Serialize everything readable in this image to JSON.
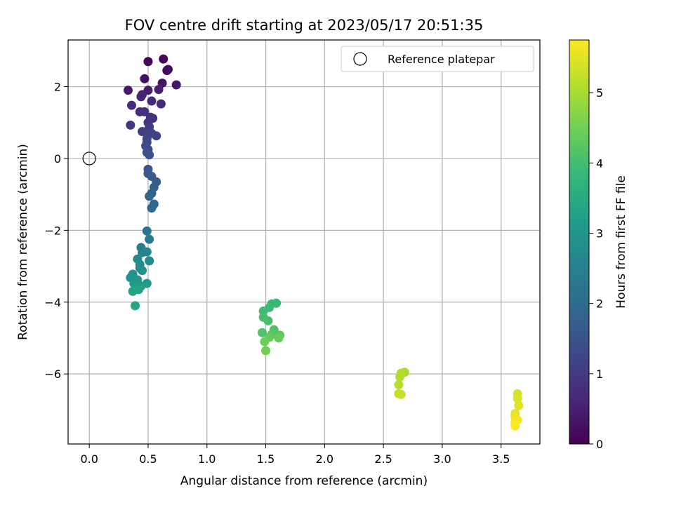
{
  "chart_data": {
    "type": "scatter",
    "title": "FOV centre drift starting at 2023/05/17 20:51:35",
    "xlabel": "Angular distance from reference (arcmin)",
    "ylabel": "Rotation from reference (arcmin)",
    "xlim": [
      -0.18,
      3.83
    ],
    "ylim": [
      -7.95,
      3.3
    ],
    "x_ticks": [
      0.0,
      0.5,
      1.0,
      1.5,
      2.0,
      2.5,
      3.0,
      3.5
    ],
    "x_tick_labels": [
      "0.0",
      "0.5",
      "1.0",
      "1.5",
      "2.0",
      "2.5",
      "3.0",
      "3.5"
    ],
    "y_ticks": [
      2,
      0,
      -2,
      -4,
      -6
    ],
    "y_tick_labels": [
      "2",
      "0",
      "−2",
      "−4",
      "−6"
    ],
    "grid": true,
    "legend": {
      "position": "top-right",
      "entries": [
        {
          "label": "Reference platepar",
          "marker": "open-circle"
        }
      ]
    },
    "reference_point": {
      "x": 0.0,
      "y": 0.0
    },
    "colorbar": {
      "label": "Hours from first FF file",
      "colormap": "viridis",
      "range": [
        0,
        5.75
      ],
      "ticks": [
        0,
        1,
        2,
        3,
        4,
        5
      ],
      "tick_labels": [
        "0",
        "1",
        "2",
        "3",
        "4",
        "5"
      ],
      "stops": [
        "#440154",
        "#482878",
        "#3e4989",
        "#31688e",
        "#26828e",
        "#1f9e89",
        "#35b779",
        "#6ece58",
        "#b5de2b",
        "#fde725"
      ]
    },
    "points": [
      {
        "x": 0.5,
        "y": 2.7,
        "h": 0.05
      },
      {
        "x": 0.63,
        "y": 2.77,
        "h": 0.1
      },
      {
        "x": 0.67,
        "y": 2.48,
        "h": 0.15
      },
      {
        "x": 0.66,
        "y": 2.45,
        "h": 0.2
      },
      {
        "x": 0.47,
        "y": 2.22,
        "h": 0.25
      },
      {
        "x": 0.62,
        "y": 2.1,
        "h": 0.3
      },
      {
        "x": 0.74,
        "y": 2.05,
        "h": 0.35
      },
      {
        "x": 0.33,
        "y": 1.9,
        "h": 0.4
      },
      {
        "x": 0.5,
        "y": 1.9,
        "h": 0.45
      },
      {
        "x": 0.59,
        "y": 1.92,
        "h": 0.5
      },
      {
        "x": 0.45,
        "y": 1.78,
        "h": 0.55
      },
      {
        "x": 0.44,
        "y": 1.72,
        "h": 0.6
      },
      {
        "x": 0.53,
        "y": 1.6,
        "h": 0.62
      },
      {
        "x": 0.61,
        "y": 1.52,
        "h": 0.65
      },
      {
        "x": 0.36,
        "y": 1.48,
        "h": 0.7
      },
      {
        "x": 0.43,
        "y": 1.3,
        "h": 0.75
      },
      {
        "x": 0.47,
        "y": 1.3,
        "h": 0.8
      },
      {
        "x": 0.52,
        "y": 1.15,
        "h": 0.85
      },
      {
        "x": 0.54,
        "y": 1.12,
        "h": 0.88
      },
      {
        "x": 0.5,
        "y": 1.0,
        "h": 0.9
      },
      {
        "x": 0.35,
        "y": 0.93,
        "h": 0.95
      },
      {
        "x": 0.51,
        "y": 0.88,
        "h": 1.0
      },
      {
        "x": 0.45,
        "y": 0.75,
        "h": 1.05
      },
      {
        "x": 0.5,
        "y": 0.73,
        "h": 1.1
      },
      {
        "x": 0.53,
        "y": 0.7,
        "h": 1.12
      },
      {
        "x": 0.57,
        "y": 0.63,
        "h": 1.15
      },
      {
        "x": 0.49,
        "y": 0.55,
        "h": 1.2
      },
      {
        "x": 0.49,
        "y": 0.45,
        "h": 1.25
      },
      {
        "x": 0.48,
        "y": 0.35,
        "h": 1.3
      },
      {
        "x": 0.5,
        "y": 0.25,
        "h": 1.35
      },
      {
        "x": 0.49,
        "y": 0.17,
        "h": 1.4
      },
      {
        "x": 0.51,
        "y": 0.1,
        "h": 1.45
      },
      {
        "x": 0.5,
        "y": -0.3,
        "h": 1.55
      },
      {
        "x": 0.5,
        "y": -0.42,
        "h": 1.6
      },
      {
        "x": 0.53,
        "y": -0.5,
        "h": 1.65
      },
      {
        "x": 0.57,
        "y": -0.65,
        "h": 1.7
      },
      {
        "x": 0.55,
        "y": -0.8,
        "h": 1.75
      },
      {
        "x": 0.53,
        "y": -0.97,
        "h": 1.8
      },
      {
        "x": 0.51,
        "y": -1.05,
        "h": 1.85
      },
      {
        "x": 0.55,
        "y": -1.27,
        "h": 1.9
      },
      {
        "x": 0.53,
        "y": -1.38,
        "h": 1.95
      },
      {
        "x": 0.49,
        "y": -2.02,
        "h": 2.2
      },
      {
        "x": 0.51,
        "y": -2.25,
        "h": 2.3
      },
      {
        "x": 0.44,
        "y": -2.48,
        "h": 2.45
      },
      {
        "x": 0.45,
        "y": -2.62,
        "h": 2.55
      },
      {
        "x": 0.49,
        "y": -2.6,
        "h": 2.6
      },
      {
        "x": 0.41,
        "y": -2.8,
        "h": 2.7
      },
      {
        "x": 0.51,
        "y": -2.85,
        "h": 2.75
      },
      {
        "x": 0.43,
        "y": -2.95,
        "h": 2.8
      },
      {
        "x": 0.43,
        "y": -3.05,
        "h": 2.85
      },
      {
        "x": 0.45,
        "y": -3.12,
        "h": 2.9
      },
      {
        "x": 0.37,
        "y": -3.22,
        "h": 2.95
      },
      {
        "x": 0.35,
        "y": -3.32,
        "h": 3.0
      },
      {
        "x": 0.41,
        "y": -3.38,
        "h": 3.05
      },
      {
        "x": 0.38,
        "y": -3.48,
        "h": 3.1
      },
      {
        "x": 0.49,
        "y": -3.48,
        "h": 3.15
      },
      {
        "x": 0.44,
        "y": -3.55,
        "h": 3.2
      },
      {
        "x": 0.39,
        "y": -3.62,
        "h": 3.25
      },
      {
        "x": 0.42,
        "y": -3.65,
        "h": 3.3
      },
      {
        "x": 0.37,
        "y": -3.7,
        "h": 3.35
      },
      {
        "x": 0.39,
        "y": -4.1,
        "h": 3.4
      },
      {
        "x": 1.55,
        "y": -4.05,
        "h": 3.8
      },
      {
        "x": 1.59,
        "y": -4.03,
        "h": 3.85
      },
      {
        "x": 1.53,
        "y": -4.15,
        "h": 3.9
      },
      {
        "x": 1.48,
        "y": -4.25,
        "h": 3.95
      },
      {
        "x": 1.48,
        "y": -4.42,
        "h": 4.0
      },
      {
        "x": 1.52,
        "y": -4.52,
        "h": 4.05
      },
      {
        "x": 1.57,
        "y": -4.77,
        "h": 4.1
      },
      {
        "x": 1.47,
        "y": -4.85,
        "h": 4.15
      },
      {
        "x": 1.55,
        "y": -4.9,
        "h": 4.2
      },
      {
        "x": 1.62,
        "y": -4.92,
        "h": 4.3
      },
      {
        "x": 1.53,
        "y": -4.98,
        "h": 4.35
      },
      {
        "x": 1.61,
        "y": -5.0,
        "h": 4.4
      },
      {
        "x": 1.49,
        "y": -5.1,
        "h": 4.45
      },
      {
        "x": 1.5,
        "y": -5.35,
        "h": 4.5
      },
      {
        "x": 2.68,
        "y": -5.95,
        "h": 5.0
      },
      {
        "x": 2.65,
        "y": -5.98,
        "h": 5.05
      },
      {
        "x": 2.64,
        "y": -6.08,
        "h": 5.1
      },
      {
        "x": 2.63,
        "y": -6.3,
        "h": 5.15
      },
      {
        "x": 2.63,
        "y": -6.55,
        "h": 5.2
      },
      {
        "x": 2.65,
        "y": -6.57,
        "h": 5.25
      },
      {
        "x": 3.64,
        "y": -6.55,
        "h": 5.4
      },
      {
        "x": 3.64,
        "y": -6.68,
        "h": 5.45
      },
      {
        "x": 3.65,
        "y": -6.88,
        "h": 5.5
      },
      {
        "x": 3.62,
        "y": -7.1,
        "h": 5.55
      },
      {
        "x": 3.62,
        "y": -7.2,
        "h": 5.6
      },
      {
        "x": 3.64,
        "y": -7.28,
        "h": 5.65
      },
      {
        "x": 3.62,
        "y": -7.35,
        "h": 5.7
      },
      {
        "x": 3.62,
        "y": -7.45,
        "h": 5.72
      }
    ]
  }
}
